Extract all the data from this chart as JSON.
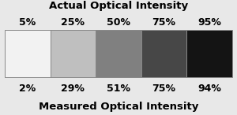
{
  "title_top": "Actual Optical Intensity",
  "title_bottom": "Measured Optical Intensity",
  "actual_labels": [
    "5%",
    "25%",
    "50%",
    "75%",
    "95%"
  ],
  "measured_labels": [
    "2%",
    "29%",
    "51%",
    "75%",
    "94%"
  ],
  "gray_values": [
    0.95,
    0.75,
    0.5,
    0.28,
    0.08
  ],
  "n_bars": 5,
  "title_fontsize": 9.5,
  "label_fontsize": 9,
  "background_color": "#e8e8e8",
  "bar_edge_color": "#888888",
  "bar_edge_width": 0.7
}
